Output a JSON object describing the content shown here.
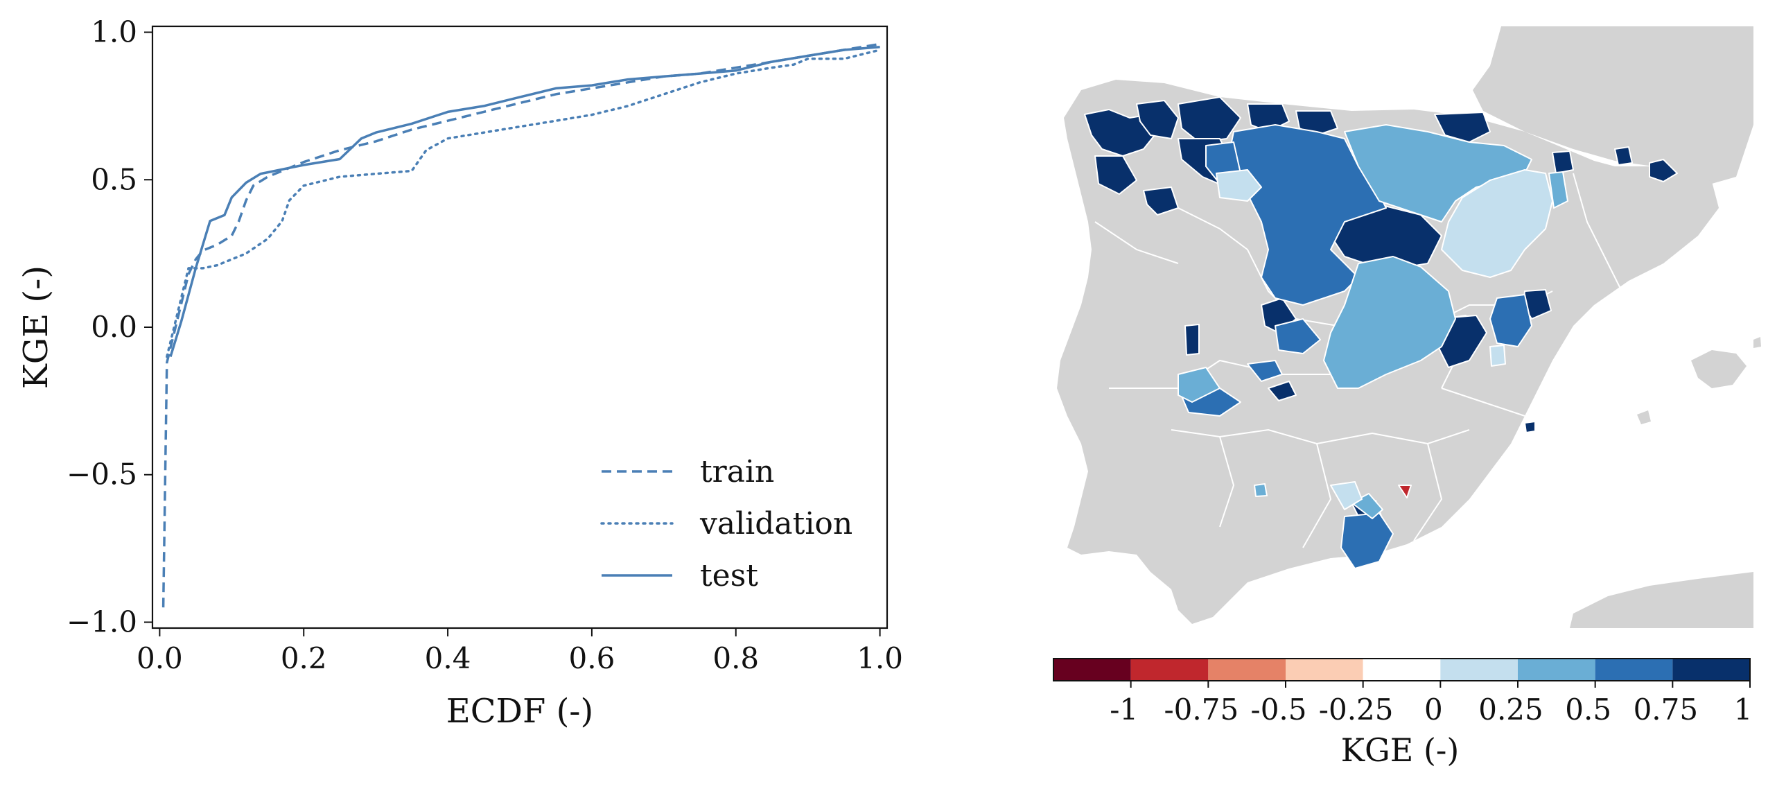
{
  "chart_data": [
    {
      "type": "line",
      "xlabel": "ECDF (-)",
      "ylabel": "KGE (-)",
      "xlim": [
        -0.01,
        1.01
      ],
      "ylim": [
        -1.02,
        1.02
      ],
      "xticks": [
        0.0,
        0.2,
        0.4,
        0.6,
        0.8,
        1.0
      ],
      "xtick_labels": [
        "0.0",
        "0.2",
        "0.4",
        "0.6",
        "0.8",
        "1.0"
      ],
      "yticks": [
        -1.0,
        -0.5,
        0.0,
        0.5,
        1.0
      ],
      "ytick_labels": [
        "−1.0",
        "−0.5",
        "0.0",
        "0.5",
        "1.0"
      ],
      "legend_position": "lower-right",
      "series": [
        {
          "name": "train",
          "style": "dashed",
          "points": [
            [
              0.005,
              -0.95
            ],
            [
              0.01,
              -0.12
            ],
            [
              0.02,
              -0.02
            ],
            [
              0.03,
              0.08
            ],
            [
              0.04,
              0.18
            ],
            [
              0.05,
              0.23
            ],
            [
              0.06,
              0.26
            ],
            [
              0.08,
              0.28
            ],
            [
              0.1,
              0.31
            ],
            [
              0.11,
              0.36
            ],
            [
              0.12,
              0.43
            ],
            [
              0.13,
              0.48
            ],
            [
              0.15,
              0.51
            ],
            [
              0.18,
              0.54
            ],
            [
              0.2,
              0.56
            ],
            [
              0.25,
              0.6
            ],
            [
              0.3,
              0.63
            ],
            [
              0.35,
              0.67
            ],
            [
              0.4,
              0.7
            ],
            [
              0.45,
              0.73
            ],
            [
              0.5,
              0.76
            ],
            [
              0.55,
              0.79
            ],
            [
              0.6,
              0.81
            ],
            [
              0.65,
              0.83
            ],
            [
              0.7,
              0.85
            ],
            [
              0.75,
              0.86
            ],
            [
              0.8,
              0.88
            ],
            [
              0.85,
              0.9
            ],
            [
              0.9,
              0.92
            ],
            [
              0.95,
              0.94
            ],
            [
              1.0,
              0.96
            ]
          ]
        },
        {
          "name": "validation",
          "style": "dotted",
          "points": [
            [
              0.01,
              -0.1
            ],
            [
              0.02,
              0.0
            ],
            [
              0.03,
              0.1
            ],
            [
              0.04,
              0.2
            ],
            [
              0.06,
              0.2
            ],
            [
              0.08,
              0.21
            ],
            [
              0.1,
              0.23
            ],
            [
              0.12,
              0.25
            ],
            [
              0.15,
              0.3
            ],
            [
              0.17,
              0.36
            ],
            [
              0.18,
              0.43
            ],
            [
              0.2,
              0.48
            ],
            [
              0.25,
              0.51
            ],
            [
              0.3,
              0.52
            ],
            [
              0.35,
              0.53
            ],
            [
              0.37,
              0.6
            ],
            [
              0.4,
              0.64
            ],
            [
              0.45,
              0.66
            ],
            [
              0.5,
              0.68
            ],
            [
              0.55,
              0.7
            ],
            [
              0.6,
              0.72
            ],
            [
              0.65,
              0.75
            ],
            [
              0.7,
              0.79
            ],
            [
              0.75,
              0.83
            ],
            [
              0.8,
              0.86
            ],
            [
              0.85,
              0.88
            ],
            [
              0.88,
              0.89
            ],
            [
              0.9,
              0.91
            ],
            [
              0.95,
              0.91
            ],
            [
              1.0,
              0.94
            ]
          ]
        },
        {
          "name": "test",
          "style": "solid",
          "points": [
            [
              0.015,
              -0.1
            ],
            [
              0.03,
              0.02
            ],
            [
              0.05,
              0.2
            ],
            [
              0.07,
              0.36
            ],
            [
              0.09,
              0.38
            ],
            [
              0.1,
              0.44
            ],
            [
              0.12,
              0.49
            ],
            [
              0.14,
              0.52
            ],
            [
              0.16,
              0.53
            ],
            [
              0.18,
              0.54
            ],
            [
              0.2,
              0.55
            ],
            [
              0.25,
              0.57
            ],
            [
              0.28,
              0.64
            ],
            [
              0.3,
              0.66
            ],
            [
              0.35,
              0.69
            ],
            [
              0.4,
              0.73
            ],
            [
              0.45,
              0.75
            ],
            [
              0.5,
              0.78
            ],
            [
              0.55,
              0.81
            ],
            [
              0.6,
              0.82
            ],
            [
              0.65,
              0.84
            ],
            [
              0.7,
              0.85
            ],
            [
              0.75,
              0.86
            ],
            [
              0.8,
              0.87
            ],
            [
              0.85,
              0.9
            ],
            [
              0.9,
              0.92
            ],
            [
              0.95,
              0.94
            ],
            [
              1.0,
              0.95
            ]
          ]
        }
      ]
    },
    {
      "type": "map",
      "colorbar": {
        "label": "KGE (-)",
        "tick_labels": [
          "-1",
          "-0.75",
          "-0.5",
          "-0.25",
          "0",
          "0.25",
          "0.5",
          "0.75",
          "1"
        ],
        "tick_values": [
          -1,
          -0.75,
          -0.5,
          -0.25,
          0,
          0.25,
          0.5,
          0.75,
          1
        ],
        "bins": [
          {
            "color": "#67001f"
          },
          {
            "color": "#c0272d"
          },
          {
            "color": "#e58267"
          },
          {
            "color": "#fbcdb4"
          },
          {
            "color": "#ffffff"
          },
          {
            "color": "#c4dfee"
          },
          {
            "color": "#6aaed5"
          },
          {
            "color": "#2c6fb3"
          },
          {
            "color": "#08306b"
          }
        ]
      },
      "colors": {
        "land": "#d3d3d3",
        "kge_gt_0_75": "#08306b",
        "kge_0_5_0_75": "#2c6fb3",
        "kge_0_25_0_5": "#6aaed5",
        "kge_0_0_25": "#c4dfee",
        "kge_neg": "#c0272d"
      }
    }
  ],
  "line_color": "#4a7fb5"
}
